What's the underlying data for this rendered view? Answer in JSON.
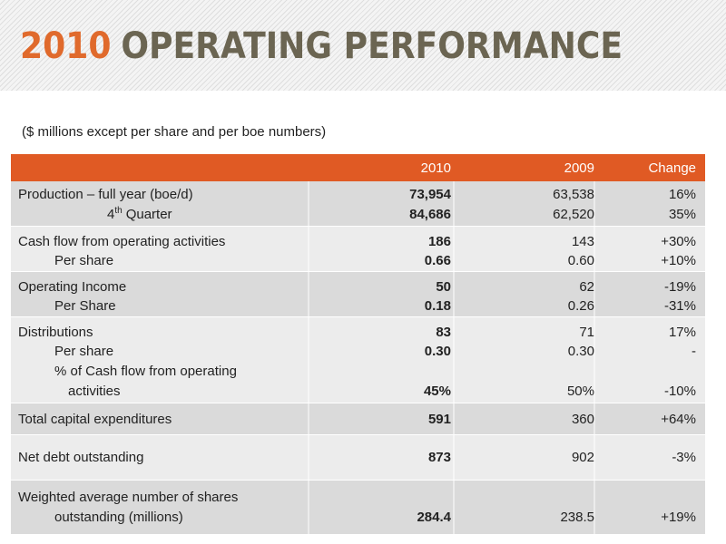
{
  "header": {
    "year": "2010",
    "title": "OPERATING PERFORMANCE",
    "subtitle": "($ millions except per share and per boe numbers)"
  },
  "table": {
    "columns": [
      "2010",
      "2009",
      "Change"
    ],
    "groups": [
      {
        "lines": [
          {
            "label": "Production – full year (boe/d)",
            "values": [
              "73,954",
              "63,538",
              "16%"
            ]
          },
          {
            "label": "4",
            "label_sup": "th",
            "label_after": "Quarter",
            "values": [
              "84,686",
              "62,520",
              "35%"
            ]
          }
        ]
      },
      {
        "lines": [
          {
            "label": "Cash flow from operating activities",
            "values": [
              "186",
              "143",
              "+30%"
            ]
          },
          {
            "label": "Per share",
            "values": [
              "0.66",
              "0.60",
              "+10%"
            ]
          }
        ]
      },
      {
        "lines": [
          {
            "label": "Operating Income",
            "values": [
              "50",
              "62",
              "-19%"
            ]
          },
          {
            "label": "Per Share",
            "values": [
              "0.18",
              "0.26",
              "-31%"
            ]
          }
        ]
      },
      {
        "lines": [
          {
            "label": "Distributions",
            "values": [
              "83",
              "71",
              "17%"
            ]
          },
          {
            "label": "Per share",
            "values": [
              "0.30",
              "0.30",
              "-"
            ]
          },
          {
            "label": "% of Cash flow from operating"
          },
          {
            "label": "activities",
            "values": [
              "45%",
              "50%",
              "-10%"
            ]
          }
        ]
      },
      {
        "lines": [
          {
            "label": "Total capital expenditures",
            "values": [
              "591",
              "360",
              "+64%"
            ]
          }
        ]
      },
      {
        "lines": [
          {
            "label": "Net debt outstanding",
            "values": [
              "873",
              "902",
              "-3%"
            ]
          }
        ]
      },
      {
        "lines": [
          {
            "label": "Weighted average number of shares"
          },
          {
            "label": "outstanding (millions)",
            "values": [
              "284.4",
              "238.5",
              "+19%"
            ]
          }
        ]
      }
    ]
  }
}
